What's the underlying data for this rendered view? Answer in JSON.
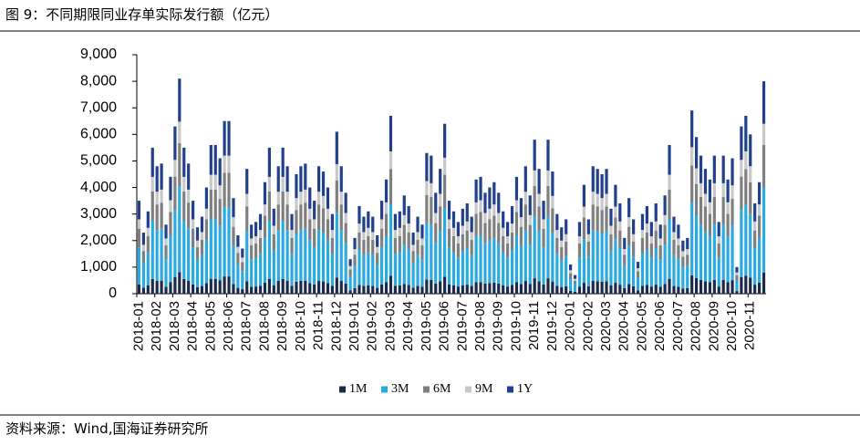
{
  "chart_data": {
    "type": "stacked_bar",
    "title": "图 9：不同期限同业存单实际发行额（亿元）",
    "source": "资料来源：Wind,国海证券研究所",
    "categories": [
      "2018-01",
      null,
      null,
      null,
      "2018-02",
      null,
      null,
      null,
      "2018-03",
      null,
      null,
      null,
      "2018-04",
      null,
      null,
      null,
      "2018-05",
      null,
      null,
      null,
      "2018-06",
      null,
      null,
      null,
      "2018-07",
      null,
      null,
      null,
      "2018-08",
      null,
      null,
      null,
      "2018-09",
      null,
      null,
      null,
      "2018-10",
      null,
      null,
      null,
      "2018-11",
      null,
      null,
      null,
      "2018-12",
      null,
      null,
      null,
      "2019-01",
      null,
      null,
      null,
      "2019-02",
      null,
      null,
      null,
      "2019-03",
      null,
      null,
      null,
      "2019-04",
      null,
      null,
      null,
      "2019-05",
      null,
      null,
      null,
      "2019-06",
      null,
      null,
      null,
      "2019-07",
      null,
      null,
      null,
      "2019-08",
      null,
      null,
      null,
      "2019-09",
      null,
      null,
      null,
      "2019-10",
      null,
      null,
      null,
      "2019-11",
      null,
      null,
      null,
      "2019-12",
      null,
      null,
      null,
      "2020-01",
      null,
      null,
      null,
      "2020-02",
      null,
      null,
      null,
      "2020-03",
      null,
      null,
      null,
      "2020-04",
      null,
      null,
      null,
      "2020-05",
      null,
      null,
      null,
      "2020-06",
      null,
      null,
      null,
      "2020-07",
      null,
      null,
      null,
      "2020-08",
      null,
      null,
      null,
      "2020-09",
      null,
      null,
      null,
      "2020-10",
      null,
      null,
      null,
      "2020-11",
      null,
      null,
      null
    ],
    "series": [
      {
        "name": "1M",
        "color": "#1c2a4a",
        "values": [
          350,
          230,
          310,
          550,
          480,
          490,
          260,
          440,
          630,
          810,
          550,
          490,
          350,
          250,
          290,
          400,
          560,
          560,
          510,
          650,
          650,
          360,
          220,
          170,
          470,
          260,
          270,
          300,
          420,
          550,
          320,
          480,
          550,
          480,
          300,
          450,
          480,
          490,
          400,
          350,
          480,
          460,
          400,
          300,
          610,
          480,
          380,
          130,
          210,
          330,
          290,
          310,
          290,
          220,
          350,
          430,
          670,
          300,
          310,
          370,
          330,
          230,
          290,
          260,
          530,
          520,
          380,
          470,
          640,
          350,
          310,
          270,
          320,
          340,
          290,
          430,
          440,
          380,
          400,
          420,
          380,
          310,
          270,
          330,
          440,
          360,
          480,
          370,
          580,
          470,
          350,
          580,
          460,
          300,
          250,
          280,
          110,
          70,
          270,
          410,
          280,
          480,
          470,
          450,
          470,
          320,
          410,
          340,
          210,
          360,
          280,
          120,
          300,
          330,
          270,
          340,
          260,
          370,
          560,
          290,
          260,
          200,
          210,
          690,
          590,
          520,
          470,
          430,
          520,
          270,
          520,
          430,
          510,
          100,
          630,
          670,
          600,
          340,
          420,
          800
        ]
      },
      {
        "name": "3M",
        "color": "#2aaae2",
        "values": [
          1400,
          920,
          1240,
          2200,
          1920,
          1960,
          1040,
          1760,
          2520,
          3240,
          2200,
          1960,
          1400,
          1000,
          1160,
          1600,
          2240,
          2240,
          2040,
          2600,
          2600,
          1440,
          880,
          680,
          1880,
          1040,
          1080,
          1200,
          1680,
          2200,
          1280,
          1920,
          2200,
          1920,
          1200,
          1800,
          1920,
          1960,
          1600,
          1400,
          1920,
          1840,
          1600,
          1200,
          2440,
          1920,
          1520,
          520,
          840,
          1320,
          1160,
          1240,
          1160,
          880,
          1400,
          1720,
          2680,
          1200,
          1240,
          1480,
          1320,
          920,
          1160,
          1040,
          2120,
          2080,
          1520,
          1880,
          2560,
          1400,
          1240,
          1080,
          1280,
          1360,
          1160,
          1720,
          1760,
          1520,
          1600,
          1680,
          1520,
          1240,
          1080,
          1320,
          1760,
          1440,
          1920,
          1480,
          2320,
          1880,
          1400,
          2320,
          1840,
          1200,
          1000,
          1120,
          440,
          280,
          1080,
          1640,
          1120,
          1920,
          1880,
          1800,
          1880,
          1280,
          1640,
          1360,
          840,
          1440,
          1120,
          480,
          1200,
          1320,
          1080,
          1360,
          1040,
          1480,
          2240,
          1160,
          1040,
          800,
          840,
          2760,
          2360,
          2080,
          1880,
          1720,
          2080,
          1080,
          2080,
          1720,
          2040,
          400,
          2520,
          2680,
          2400,
          1360,
          1680,
          3200
        ]
      },
      {
        "name": "6M",
        "color": "#7f7f7f",
        "values": [
          700,
          460,
          620,
          1100,
          960,
          980,
          520,
          880,
          1260,
          1620,
          1100,
          980,
          700,
          500,
          580,
          800,
          1120,
          1120,
          1020,
          1300,
          1300,
          720,
          440,
          340,
          940,
          520,
          540,
          600,
          840,
          1100,
          640,
          960,
          1100,
          960,
          600,
          900,
          960,
          980,
          800,
          700,
          960,
          920,
          800,
          600,
          1220,
          960,
          760,
          260,
          420,
          660,
          580,
          620,
          580,
          440,
          700,
          860,
          1340,
          600,
          620,
          740,
          660,
          460,
          580,
          520,
          1060,
          1040,
          760,
          940,
          1280,
          700,
          620,
          540,
          640,
          680,
          580,
          860,
          880,
          760,
          800,
          840,
          760,
          620,
          540,
          660,
          880,
          720,
          960,
          740,
          1160,
          940,
          700,
          1160,
          920,
          600,
          500,
          560,
          220,
          140,
          540,
          820,
          560,
          960,
          940,
          900,
          940,
          640,
          820,
          680,
          420,
          720,
          560,
          240,
          600,
          660,
          540,
          680,
          520,
          740,
          1120,
          580,
          520,
          400,
          420,
          1380,
          1180,
          1040,
          940,
          860,
          1040,
          540,
          1040,
          860,
          1020,
          200,
          1260,
          1340,
          1200,
          680,
          840,
          1600
        ]
      },
      {
        "name": "9M",
        "color": "#c8c8c8",
        "values": [
          350,
          230,
          310,
          550,
          480,
          490,
          260,
          440,
          630,
          810,
          550,
          490,
          350,
          250,
          290,
          400,
          560,
          560,
          510,
          650,
          650,
          360,
          220,
          170,
          470,
          260,
          270,
          300,
          420,
          550,
          320,
          480,
          550,
          480,
          300,
          450,
          480,
          490,
          400,
          350,
          480,
          460,
          400,
          300,
          610,
          480,
          380,
          130,
          210,
          330,
          290,
          310,
          290,
          220,
          350,
          430,
          670,
          300,
          310,
          370,
          330,
          230,
          290,
          260,
          530,
          520,
          380,
          470,
          640,
          350,
          310,
          270,
          320,
          340,
          290,
          430,
          440,
          380,
          400,
          420,
          380,
          310,
          270,
          330,
          440,
          360,
          480,
          370,
          580,
          470,
          350,
          580,
          460,
          300,
          250,
          280,
          110,
          70,
          270,
          410,
          280,
          480,
          470,
          450,
          470,
          320,
          410,
          340,
          210,
          360,
          280,
          120,
          300,
          330,
          270,
          340,
          260,
          370,
          560,
          290,
          260,
          200,
          210,
          690,
          590,
          520,
          470,
          430,
          520,
          270,
          520,
          430,
          510,
          100,
          630,
          670,
          600,
          340,
          420,
          800
        ]
      },
      {
        "name": "1Y",
        "color": "#203f8c",
        "values": [
          700,
          460,
          620,
          1100,
          960,
          980,
          520,
          880,
          1260,
          1620,
          1100,
          980,
          700,
          500,
          580,
          800,
          1120,
          1120,
          1020,
          1300,
          1300,
          720,
          440,
          340,
          940,
          520,
          540,
          600,
          840,
          1100,
          640,
          960,
          1100,
          960,
          600,
          900,
          960,
          980,
          800,
          700,
          960,
          920,
          800,
          600,
          1220,
          960,
          760,
          260,
          420,
          660,
          580,
          620,
          580,
          440,
          700,
          860,
          1340,
          600,
          620,
          740,
          660,
          460,
          580,
          520,
          1060,
          1040,
          760,
          940,
          1280,
          700,
          620,
          540,
          640,
          680,
          580,
          860,
          880,
          760,
          800,
          840,
          760,
          620,
          540,
          660,
          880,
          720,
          960,
          740,
          1160,
          940,
          700,
          1160,
          920,
          600,
          500,
          560,
          220,
          140,
          540,
          820,
          560,
          960,
          940,
          900,
          940,
          640,
          820,
          680,
          420,
          720,
          560,
          240,
          600,
          660,
          540,
          680,
          520,
          740,
          1120,
          580,
          520,
          400,
          420,
          1380,
          1180,
          1040,
          940,
          860,
          1040,
          540,
          1040,
          860,
          1020,
          200,
          1260,
          1340,
          1200,
          680,
          840,
          1600
        ]
      }
    ],
    "ylim": [
      0,
      9000
    ],
    "yticks": [
      0,
      {
        "value": 1000,
        "label": "1,000"
      },
      {
        "value": 2000,
        "label": "2,000"
      },
      {
        "value": 3000,
        "label": "3,000"
      },
      {
        "value": 4000,
        "label": "4,000"
      },
      {
        "value": 5000,
        "label": "5,000"
      },
      {
        "value": 6000,
        "label": "6,000"
      },
      {
        "value": 7000,
        "label": "7,000"
      },
      {
        "value": 8000,
        "label": "8,000"
      },
      {
        "value": 9000,
        "label": "9,000"
      }
    ],
    "legend": "bottom"
  }
}
